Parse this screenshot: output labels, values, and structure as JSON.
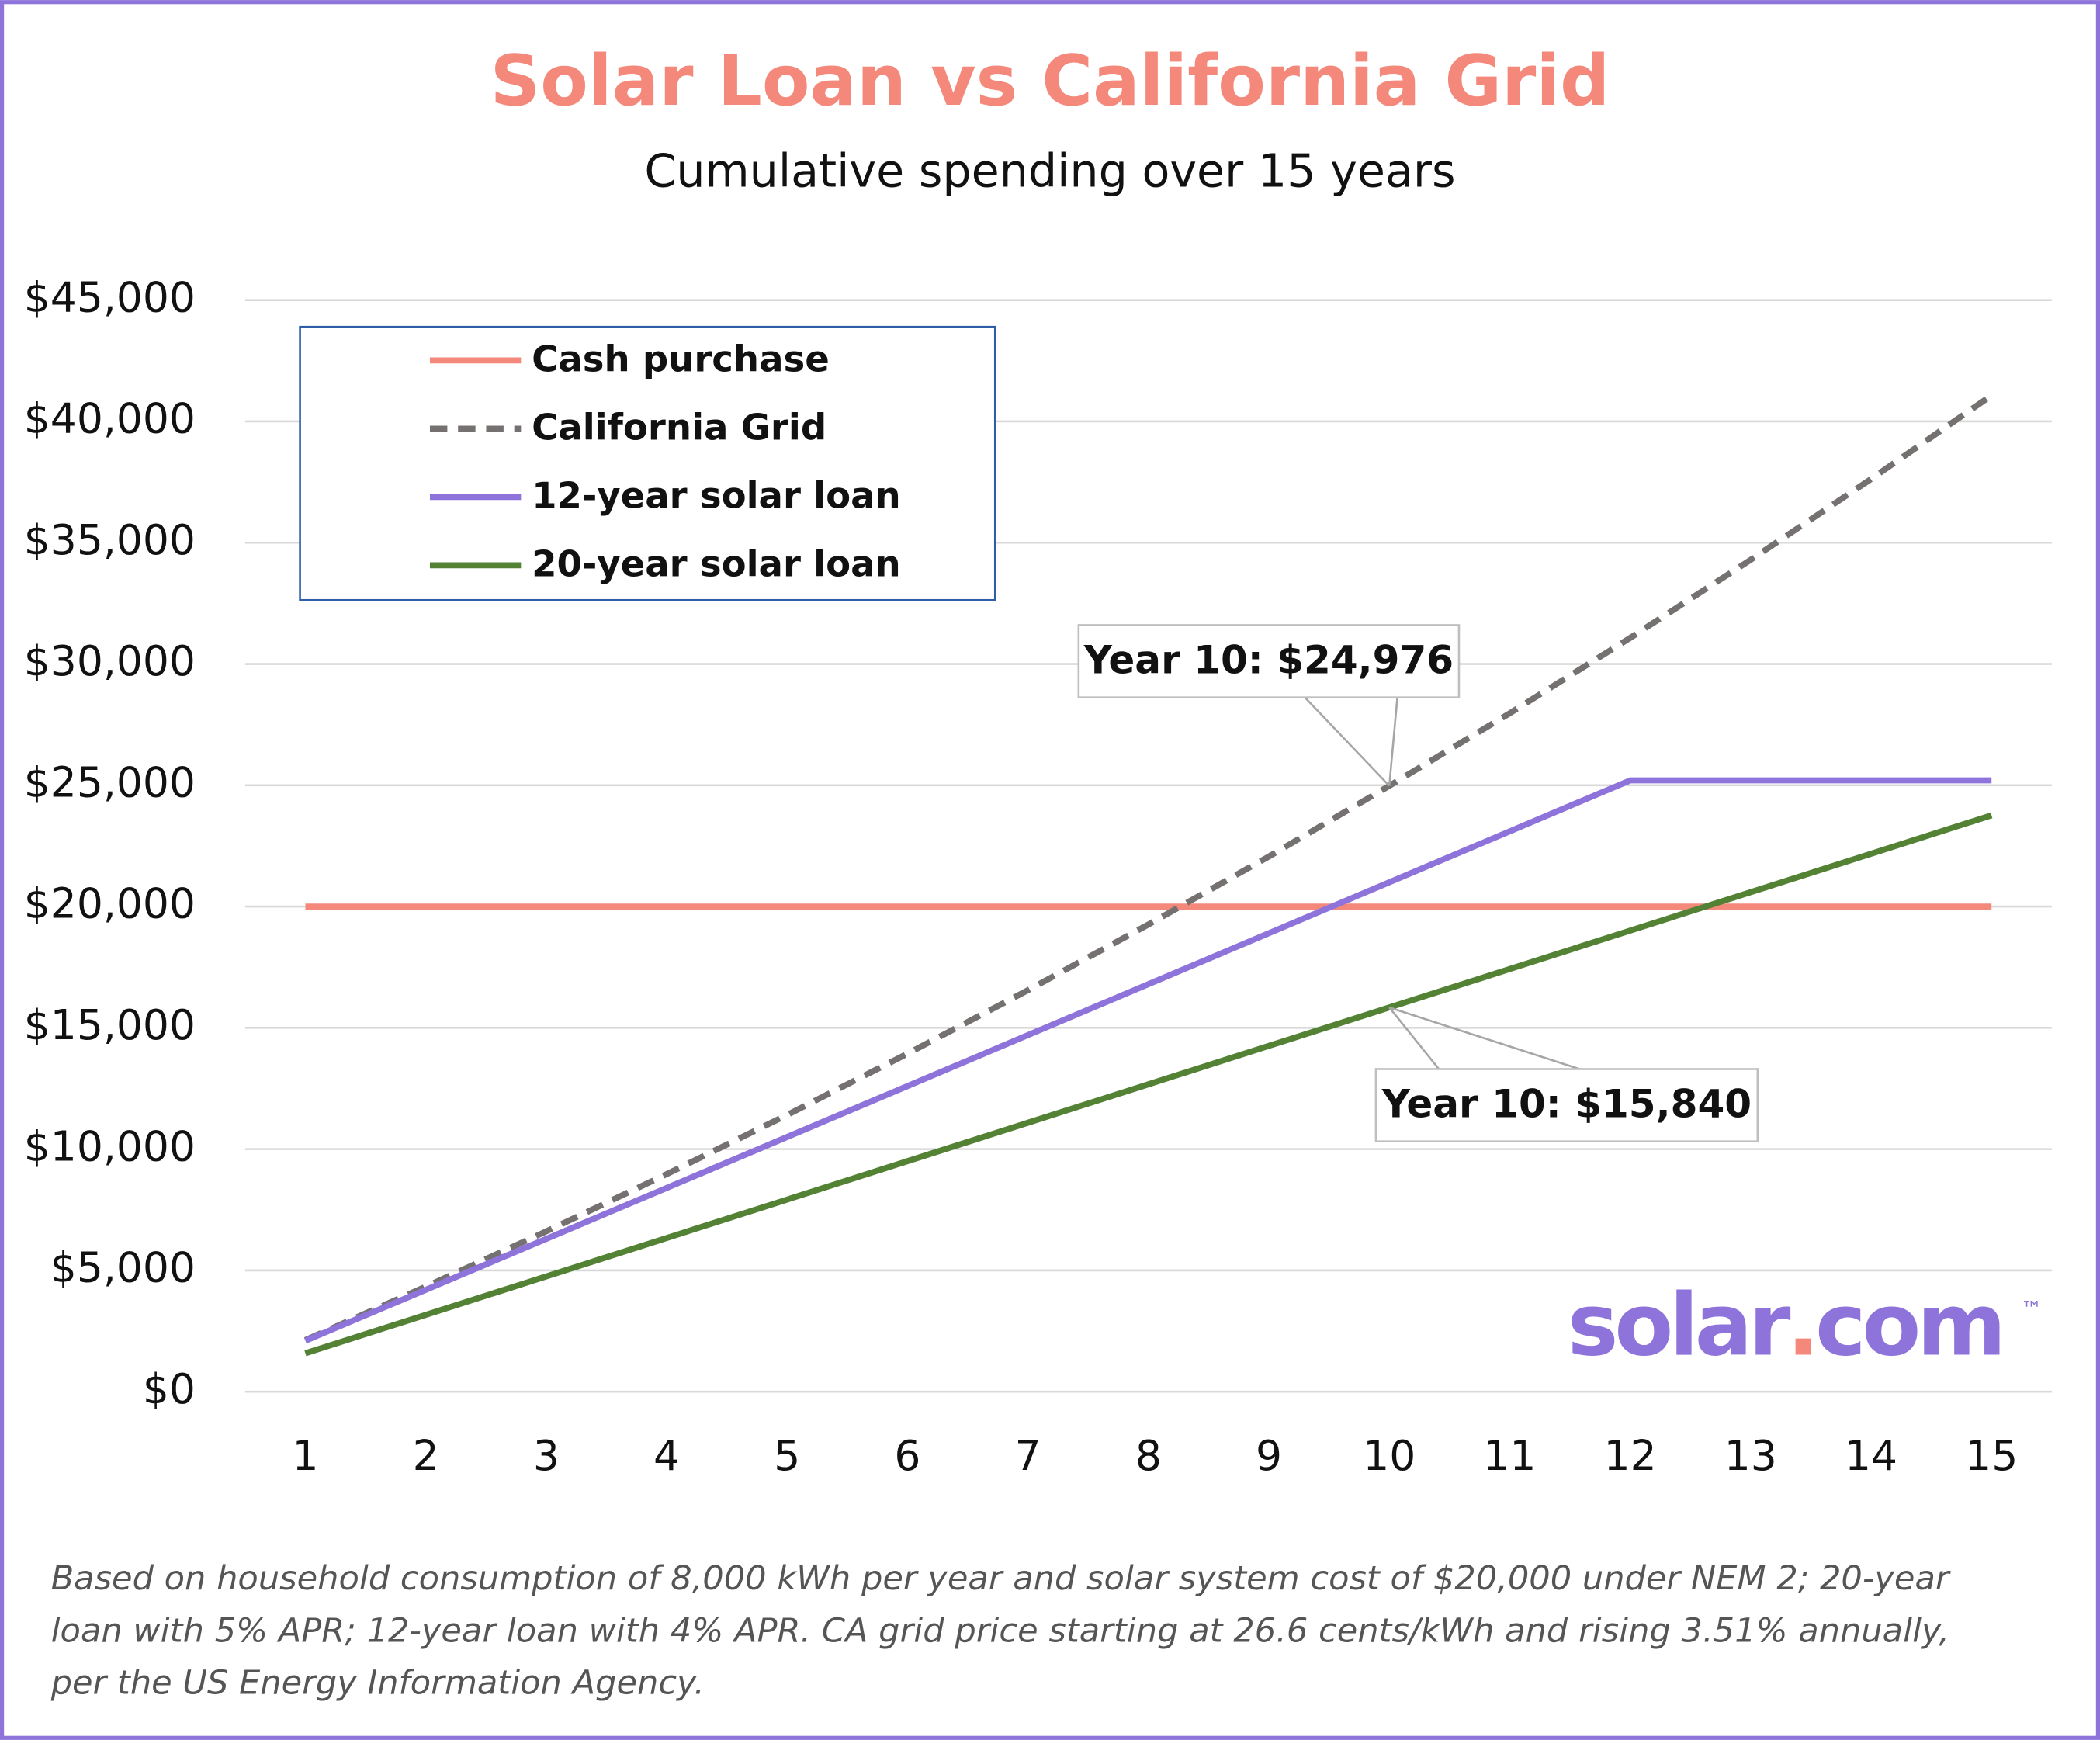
{
  "chart_data": {
    "type": "line",
    "title": "Solar Loan vs California Grid",
    "subtitle": "Cumulative spending over 15 years",
    "categories": [
      "1",
      "2",
      "3",
      "4",
      "5",
      "6",
      "7",
      "8",
      "9",
      "10",
      "11",
      "12",
      "13",
      "14",
      "15"
    ],
    "series": [
      {
        "name": "Cash purchase",
        "color": "#f4897b",
        "dashed": false,
        "values": [
          20000,
          20000,
          20000,
          20000,
          20000,
          20000,
          20000,
          20000,
          20000,
          20000,
          20000,
          20000,
          20000,
          20000,
          20000
        ]
      },
      {
        "name": "California Grid",
        "color": "#767171",
        "dashed": true,
        "values": [
          2127,
          4329,
          6608,
          8967,
          11408,
          13936,
          16552,
          19260,
          22063,
          24976,
          27968,
          31075,
          34293,
          37624,
          41072
        ],
        "value_labels": [
          null,
          null,
          null,
          null,
          null,
          null,
          null,
          null,
          null,
          "Year 10: $24,976",
          null,
          null,
          null,
          null,
          null
        ]
      },
      {
        "name": "12-year solar loan",
        "color": "#8e73db",
        "dashed": false,
        "values": [
          2100,
          4200,
          6300,
          8400,
          10500,
          12600,
          14700,
          16800,
          18900,
          21000,
          23100,
          25200,
          25200,
          25200,
          25200
        ]
      },
      {
        "name": "20-year solar loan",
        "color": "#548235",
        "dashed": false,
        "values": [
          1584,
          3168,
          4752,
          6336,
          7920,
          9504,
          11088,
          12672,
          14256,
          15840,
          17424,
          19008,
          20592,
          22176,
          23760
        ],
        "value_labels": [
          null,
          null,
          null,
          null,
          null,
          null,
          null,
          null,
          null,
          "Year 10: $15,840",
          null,
          null,
          null,
          null,
          null
        ]
      }
    ],
    "ylim": [
      0,
      45000
    ],
    "yticks": [
      {
        "value": 0,
        "label": "$0"
      },
      {
        "value": 5000,
        "label": "$5,000"
      },
      {
        "value": 10000,
        "label": "$10,000"
      },
      {
        "value": 15000,
        "label": "$15,000"
      },
      {
        "value": 20000,
        "label": "$20,000"
      },
      {
        "value": 25000,
        "label": "$25,000"
      },
      {
        "value": 30000,
        "label": "$30,000"
      },
      {
        "value": 35000,
        "label": "$35,000"
      },
      {
        "value": 40000,
        "label": "$40,000"
      },
      {
        "value": 45000,
        "label": "$45,000"
      }
    ],
    "grid": true,
    "legend": "top-left",
    "logo": {
      "parts": [
        "solar",
        ".",
        "com"
      ],
      "trademark": "™"
    },
    "footnote": [
      "Based on household consumption of 8,000 kWh per year and solar system cost of $20,000 under NEM 2; 20-year",
      "loan with 5% APR; 12-year loan with 4% APR. CA grid price starting at 26.6 cents/kWh and rising 3.51% annually,",
      "per the US Energy Information Agency."
    ]
  }
}
